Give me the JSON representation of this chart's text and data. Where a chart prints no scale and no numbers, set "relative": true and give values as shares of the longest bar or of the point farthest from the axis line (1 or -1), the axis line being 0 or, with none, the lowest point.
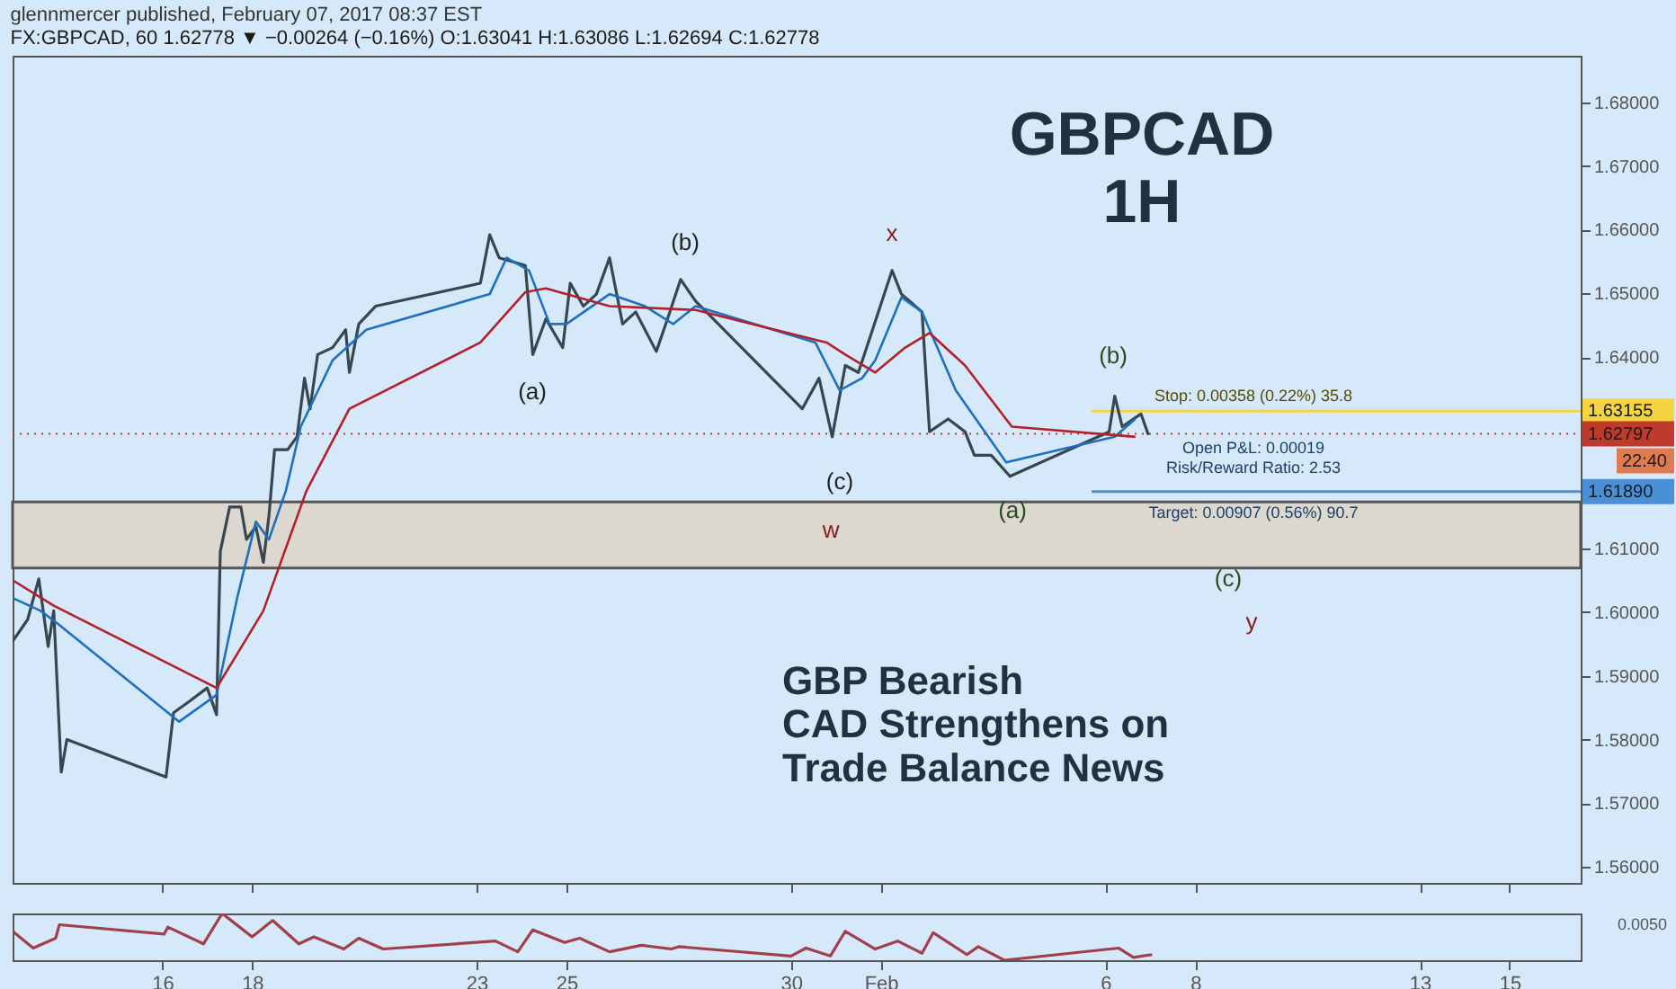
{
  "chart_data": [
    {
      "type": "line",
      "title": "glennmercer published, February 07, 2017 08:37 EST",
      "subtitle": "FX:GBPCAD, 60 1.62778 ▼ −0.00264 (−0.16%) O:1.63041 H:1.63086 L:1.62694 C:1.62778",
      "xlim": [
        "2017-01-12T16:00",
        "2017-02-16T14:00"
      ],
      "xticks": [
        {
          "value": "2017-01-16",
          "label": null
        },
        {
          "value": "2017-01-18",
          "label": null
        },
        {
          "value": "2017-01-23",
          "label": null
        },
        {
          "value": "2017-01-25",
          "label": null
        },
        {
          "value": "2017-01-30",
          "label": null
        },
        {
          "value": "2017-02-01",
          "label": null
        },
        {
          "value": "2017-02-06",
          "label": null
        },
        {
          "value": "2017-02-08",
          "label": null
        },
        {
          "value": "2017-02-13",
          "label": null
        },
        {
          "value": "2017-02-15",
          "label": null
        }
      ],
      "ylim": [
        1.5575,
        1.6873
      ],
      "yticks": [
        {
          "value": 1.56,
          "label": "1.56000"
        },
        {
          "value": 1.57,
          "label": "1.57000"
        },
        {
          "value": 1.58,
          "label": "1.58000"
        },
        {
          "value": 1.59,
          "label": "1.59000"
        },
        {
          "value": 1.6,
          "label": "1.60000"
        },
        {
          "value": 1.61,
          "label": "1.61000"
        },
        {
          "value": 1.64,
          "label": "1.64000"
        },
        {
          "value": 1.65,
          "label": "1.65000"
        },
        {
          "value": 1.66,
          "label": "1.66000"
        },
        {
          "value": 1.67,
          "label": "1.67000"
        },
        {
          "value": 1.68,
          "label": "1.68000"
        }
      ],
      "tick_labels": "y",
      "series": [
        {
          "color": "#37474f",
          "x": [
            "2017-01-12T16:00",
            "2017-01-13T00:00",
            "2017-01-13T06:00",
            "2017-01-13T11:00",
            "2017-01-13T14:00",
            "2017-01-13T18:00",
            "2017-01-13T21:00",
            "2017-01-16T02:00",
            "2017-01-16T06:00",
            "2017-01-16T15:00",
            "2017-01-17T00:00",
            "2017-01-17T05:00",
            "2017-01-17T07:00",
            "2017-01-17T12:00",
            "2017-01-17T18:00",
            "2017-01-17T21:00",
            "2017-01-18T02:00",
            "2017-01-18T06:00",
            "2017-01-18T09:00",
            "2017-01-18T12:00",
            "2017-01-18T19:00",
            "2017-01-19T00:00",
            "2017-01-19T04:00",
            "2017-01-19T07:00",
            "2017-01-19T11:00",
            "2017-01-19T19:00",
            "2017-01-20T02:00",
            "2017-01-20T04:00",
            "2017-01-20T09:00",
            "2017-01-20T18:00",
            "2017-01-23T02:00",
            "2017-01-23T07:00",
            "2017-01-23T12:00",
            "2017-01-24T02:00",
            "2017-01-24T06:00",
            "2017-01-24T13:00",
            "2017-01-24T22:00",
            "2017-01-25T02:00",
            "2017-01-25T09:00",
            "2017-01-25T16:00",
            "2017-01-25T23:00",
            "2017-01-26T06:00",
            "2017-01-26T13:00",
            "2017-01-27T00:00",
            "2017-01-27T06:00",
            "2017-01-27T13:00",
            "2017-01-27T21:00",
            "2017-01-30T06:00",
            "2017-01-30T15:00",
            "2017-01-30T22:00",
            "2017-01-31T05:00",
            "2017-01-31T12:00",
            "2017-01-31T19:00",
            "2017-02-01T06:00",
            "2017-02-01T11:00",
            "2017-02-01T22:00",
            "2017-02-02T02:00",
            "2017-02-02T12:00",
            "2017-02-02T21:00",
            "2017-02-03T02:00",
            "2017-02-03T11:00",
            "2017-02-03T21:00",
            "2017-02-06T02:00",
            "2017-02-06T05:00",
            "2017-02-06T09:00",
            "2017-02-06T19:00",
            "2017-02-06T23:00"
          ],
          "values": [
            1.5954,
            1.5988,
            1.6052,
            1.5946,
            1.6002,
            1.5749,
            1.58,
            1.5741,
            1.5842,
            1.5861,
            1.5881,
            1.5839,
            1.6095,
            1.6165,
            1.6165,
            1.6114,
            1.6134,
            1.6078,
            1.6151,
            1.6255,
            1.6255,
            1.6275,
            1.6367,
            1.6319,
            1.6404,
            1.6415,
            1.6443,
            1.6376,
            1.6452,
            1.648,
            1.6516,
            1.6592,
            1.6556,
            1.6544,
            1.6404,
            1.646,
            1.6415,
            1.6516,
            1.648,
            1.6499,
            1.6556,
            1.6452,
            1.6471,
            1.6409,
            1.646,
            1.6522,
            1.6488,
            1.6319,
            1.6367,
            1.6275,
            1.6387,
            1.6376,
            1.6438,
            1.6536,
            1.6499,
            1.6471,
            1.6283,
            1.6303,
            1.6283,
            1.6246,
            1.6246,
            1.6213,
            1.6283,
            1.6339,
            1.6291,
            1.6311,
            1.6278
          ]
        },
        {
          "color": "#1f6fbf",
          "x": [
            "2017-01-12T16:00",
            "2017-01-13T07:00",
            "2017-01-13T16:00",
            "2017-01-16T09:00",
            "2017-01-17T05:00",
            "2017-01-17T16:00",
            "2017-01-18T02:00",
            "2017-01-18T09:00",
            "2017-01-18T18:00",
            "2017-01-19T02:00",
            "2017-01-19T19:00",
            "2017-01-20T13:00",
            "2017-01-23T07:00",
            "2017-01-23T16:00",
            "2017-01-24T04:00",
            "2017-01-24T15:00",
            "2017-01-25T00:00",
            "2017-01-25T23:00",
            "2017-01-26T18:00",
            "2017-01-27T09:00",
            "2017-01-27T21:00",
            "2017-01-30T13:00",
            "2017-01-31T02:00",
            "2017-01-31T14:00",
            "2017-01-31T21:00",
            "2017-02-01T11:00",
            "2017-02-01T22:00",
            "2017-02-02T16:00",
            "2017-02-03T19:00",
            "2017-02-06T05:00",
            "2017-02-06T16:00"
          ],
          "values": [
            1.6022,
            1.6002,
            1.5982,
            1.5828,
            1.587,
            1.6022,
            1.6142,
            1.6114,
            1.619,
            1.6291,
            1.6395,
            1.6443,
            1.6499,
            1.6556,
            1.6536,
            1.6452,
            1.6452,
            1.6499,
            1.648,
            1.6452,
            1.648,
            1.6423,
            1.6348,
            1.6367,
            1.6395,
            1.6494,
            1.6471,
            1.6348,
            1.6235,
            1.6275,
            1.6303
          ]
        },
        {
          "color": "#b3202a",
          "x": [
            "2017-01-12T16:00",
            "2017-01-13T14:00",
            "2017-01-17T05:00",
            "2017-01-18T06:00",
            "2017-01-19T05:00",
            "2017-01-20T04:00",
            "2017-01-23T02:00",
            "2017-01-24T02:00",
            "2017-01-24T13:00",
            "2017-01-25T23:00",
            "2017-01-27T21:00",
            "2017-01-30T19:00",
            "2017-01-31T05:00",
            "2017-01-31T21:00",
            "2017-02-01T13:00",
            "2017-02-02T02:00",
            "2017-02-02T21:00",
            "2017-02-03T22:00",
            "2017-02-06T16:00"
          ],
          "values": [
            1.605,
            1.601,
            1.5881,
            1.6002,
            1.619,
            1.6319,
            1.6423,
            1.6502,
            1.6508,
            1.648,
            1.6474,
            1.6423,
            1.6404,
            1.6376,
            1.6415,
            1.6438,
            1.6387,
            1.6291,
            1.6275
          ]
        }
      ],
      "bands": [
        {
          "axis": "y",
          "from": 1.6069,
          "to": 1.6173,
          "color": "#ddd8cf"
        }
      ],
      "ref_lines": [
        {
          "axis": "y",
          "value": 1.63155,
          "label": "1.63155",
          "color": "#f5d442"
        },
        {
          "axis": "y",
          "value": 1.62797,
          "label": "1.62797",
          "color": "#c0392b",
          "line_style": "dotted"
        },
        {
          "axis": "y",
          "value": 1.6189,
          "label": "1.61890",
          "color": "#4a90d9"
        }
      ],
      "annotations": [
        "GBPCAD\n1H",
        "GBP Bearish\nCAD Strengthens on\nTrade Balance News",
        "22:40",
        "(a)",
        "(b)",
        "(c)",
        "x",
        "w",
        "(a)",
        "(b)",
        "(c)",
        "y",
        "Stop: 0.00358 (0.22%) 35.8",
        "Open P&L: 0.00019",
        "Risk/Reward Ratio: 2.53",
        "Target: 0.00907 (0.56%) 90.7"
      ]
    },
    {
      "type": "line",
      "relative": true,
      "tick_labels": "x",
      "xlim": [
        "2017-01-12T16:00",
        "2017-02-16T14:00"
      ],
      "xticks": [
        {
          "value": "2017-01-16",
          "label": "16"
        },
        {
          "value": "2017-01-18",
          "label": "18"
        },
        {
          "value": "2017-01-23",
          "label": "23"
        },
        {
          "value": "2017-01-25",
          "label": "25"
        },
        {
          "value": "2017-01-30",
          "label": "30"
        },
        {
          "value": "2017-02-01",
          "label": "Feb"
        },
        {
          "value": "2017-02-06",
          "label": "6"
        },
        {
          "value": "2017-02-08",
          "label": "8"
        },
        {
          "value": "2017-02-13",
          "label": "13"
        },
        {
          "value": "2017-02-15",
          "label": "15"
        }
      ],
      "series": [
        {
          "color": "#a0404a",
          "x": [
            "2017-01-12T16:00",
            "2017-01-13T03:00",
            "2017-01-13T15:00",
            "2017-01-13T17:00",
            "2017-01-16T01:00",
            "2017-01-16T03:00",
            "2017-01-16T22:00",
            "2017-01-17T08:00",
            "2017-01-18T00:00",
            "2017-01-18T11:00",
            "2017-01-19T01:00",
            "2017-01-19T09:00",
            "2017-01-20T01:00",
            "2017-01-20T09:00",
            "2017-01-20T22:00",
            "2017-01-23T10:00",
            "2017-01-23T22:00",
            "2017-01-24T06:00",
            "2017-01-24T23:00",
            "2017-01-25T07:00",
            "2017-01-25T23:00",
            "2017-01-26T16:00",
            "2017-01-27T08:00",
            "2017-01-27T12:00",
            "2017-01-30T00:00",
            "2017-01-30T08:00",
            "2017-01-30T21:00",
            "2017-01-31T05:00",
            "2017-01-31T21:00",
            "2017-02-01T09:00",
            "2017-02-01T22:00",
            "2017-02-02T04:00",
            "2017-02-02T22:00",
            "2017-02-03T04:00",
            "2017-02-03T18:00",
            "2017-02-06T07:00",
            "2017-02-06T15:00",
            "2017-02-07T01:00"
          ],
          "values": [
            0.62,
            0.26,
            0.47,
            0.76,
            0.56,
            0.71,
            0.35,
            1.0,
            0.5,
            0.85,
            0.35,
            0.5,
            0.24,
            0.47,
            0.24,
            0.41,
            0.18,
            0.65,
            0.38,
            0.47,
            0.18,
            0.32,
            0.24,
            0.29,
            0.09,
            0.26,
            0.09,
            0.62,
            0.24,
            0.41,
            0.15,
            0.59,
            0.12,
            0.29,
            0.0,
            0.26,
            0.06,
            0.12
          ]
        }
      ],
      "annotations": [
        "0.0050"
      ]
    }
  ]
}
